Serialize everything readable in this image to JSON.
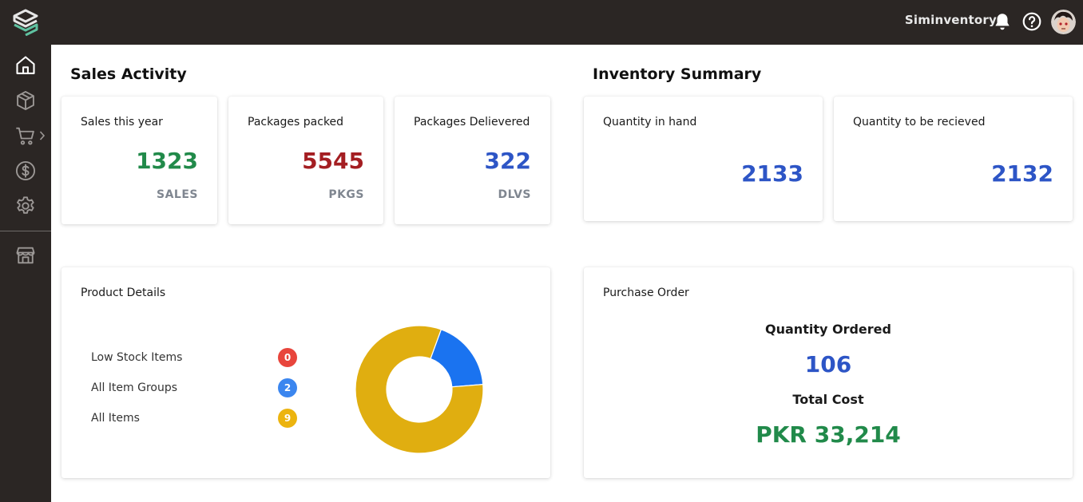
{
  "app": {
    "name": "Siminventory"
  },
  "colors": {
    "topbar": "#2b2624",
    "green": "#218a4a",
    "red": "#a41e22",
    "blue": "#2d55c6",
    "donut_yellow": "#e0ae10",
    "donut_blue": "#1a73f0",
    "badge_red": "#e8453c",
    "badge_blue": "#3b86ef",
    "badge_yellow": "#ecb40f"
  },
  "icons": {
    "logo": "siminventory-logo",
    "notifications": "bell-icon",
    "help": "help-icon",
    "sidebar": [
      "home-icon",
      "package-icon",
      "cart-icon",
      "dollar-icon",
      "settings-icon",
      "store-icon"
    ]
  },
  "sales_activity": {
    "title": "Sales Activity",
    "cards": [
      {
        "label": "Sales this year",
        "value": "1323",
        "unit": "SALES",
        "color": "green"
      },
      {
        "label": "Packages packed",
        "value": "5545",
        "unit": "PKGS",
        "color": "red"
      },
      {
        "label": "Packages Delievered",
        "value": "322",
        "unit": "DLVS",
        "color": "blue"
      }
    ]
  },
  "inventory_summary": {
    "title": "Inventory Summary",
    "cards": [
      {
        "label": "Quantity in hand",
        "value": "2133"
      },
      {
        "label": "Quantity to be recieved",
        "value": "2132"
      }
    ]
  },
  "product_details": {
    "title": "Product Details",
    "items": [
      {
        "label": "Low Stock Items",
        "count": "0",
        "color": "badge_red"
      },
      {
        "label": "All Item Groups",
        "count": "2",
        "color": "badge_blue"
      },
      {
        "label": "All Items",
        "count": "9",
        "color": "badge_yellow"
      }
    ]
  },
  "chart_data": {
    "type": "pie",
    "donut": true,
    "labels": [
      "",
      ""
    ],
    "values": [
      2,
      9
    ],
    "colors": [
      "#1a73f0",
      "#e0ae10"
    ],
    "start_angle_deg": 20
  },
  "purchase_order": {
    "title": "Purchase Order",
    "quantity_label": "Quantity Ordered",
    "quantity_value": "106",
    "cost_label": "Total Cost",
    "cost_value": "PKR 33,214"
  }
}
